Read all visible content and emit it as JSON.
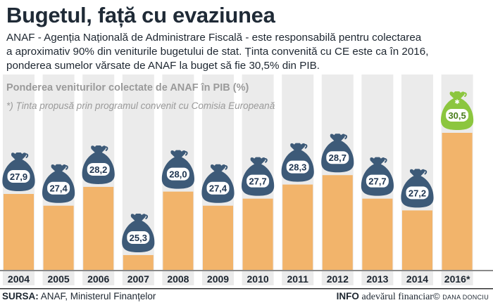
{
  "header": {
    "title": "Bugetul, față cu evaziunea",
    "intro_lines": [
      "ANAF - Agenția Națională de Administrare Fiscală - este responsabilă pentru colectarea",
      "a aproximativ 90% din veniturile bugetului de stat. Ținta convenită cu CE este ca în 2016,",
      "ponderea sumelor vărsate de ANAF la buget să fie 30,5% din PIB."
    ]
  },
  "chart_data": {
    "type": "bar",
    "title": "Ponderea veniturilor colectate de ANAF în PIB (%)",
    "note": "*) Ținta propusă prin programul convenit cu Comisia Europeană",
    "categories": [
      "2004",
      "2005",
      "2006",
      "2007",
      "2008",
      "2009",
      "2010",
      "2011",
      "2012",
      "2013",
      "2014",
      "2016*"
    ],
    "values": [
      27.9,
      27.4,
      28.2,
      25.3,
      28.0,
      27.4,
      27.7,
      28.3,
      28.7,
      27.7,
      27.2,
      30.5
    ],
    "value_labels": [
      "27,9",
      "27,4",
      "28,2",
      "25,3",
      "28,0",
      "27,4",
      "27,7",
      "28,3",
      "28,7",
      "27,7",
      "27,2",
      "30,5"
    ],
    "highlight_index": 11,
    "ylim": [
      25,
      30.5
    ],
    "xlabel": "",
    "ylabel": "",
    "colors": {
      "bar": "#f2b46b",
      "column_bg": "#ebebeb",
      "bag": "#3d5a78",
      "bag_highlight": "#8cc63f",
      "label_bg": "#ffffff"
    }
  },
  "footer": {
    "source_label": "SURSA:",
    "source_text": " ANAF, Ministerul Finanțelor",
    "info": "INFO",
    "brand": "adevărul financiar",
    "copyright": "©",
    "author": "DANA DONCIU"
  }
}
